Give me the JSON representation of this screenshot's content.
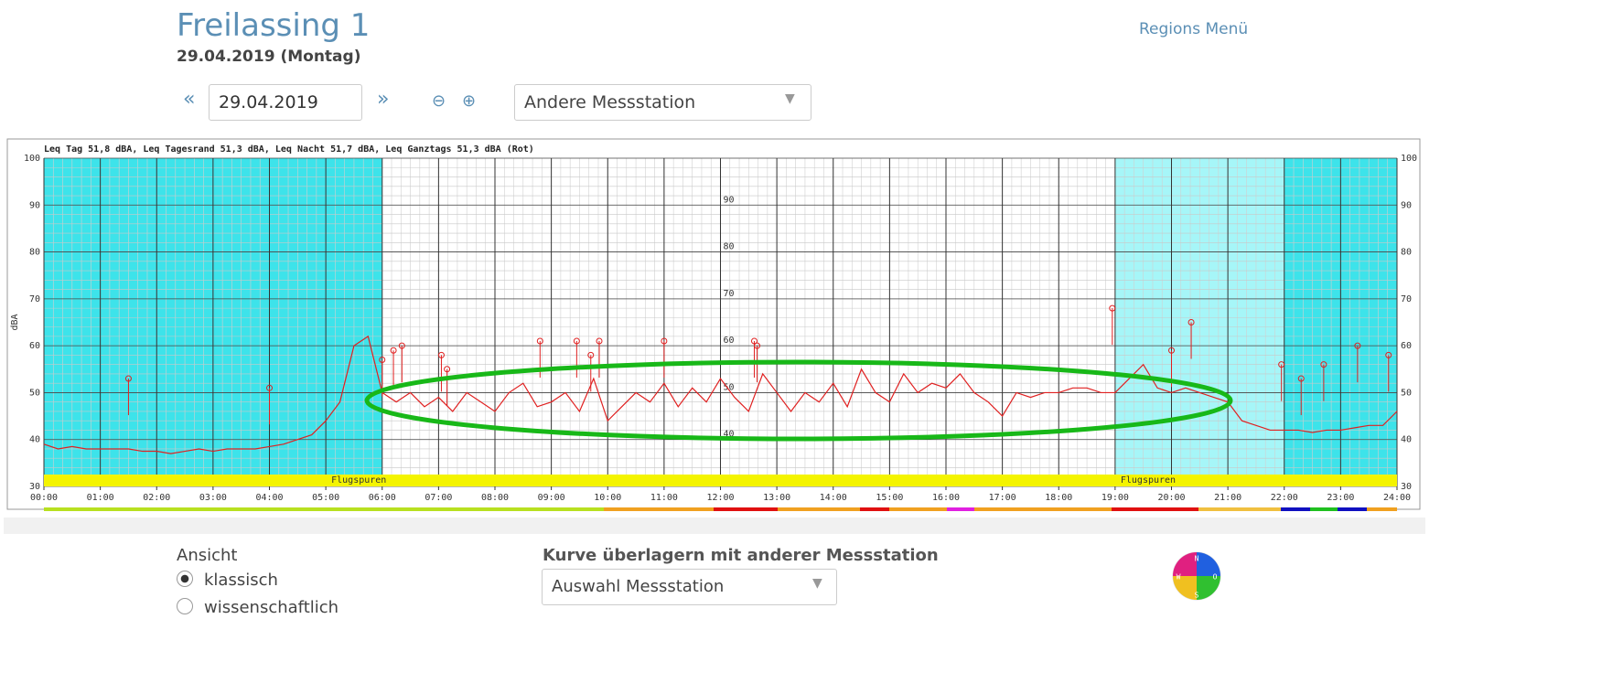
{
  "header": {
    "title": "Freilassing 1",
    "subtitle": "29.04.2019 (Montag)",
    "menu": "Regions Menü"
  },
  "controls": {
    "prev": "«",
    "date": "29.04.2019",
    "next": "»",
    "station_select": "Andere Messstation"
  },
  "chart_data": {
    "type": "line",
    "title": "Leq Tag 51,8 dBA, Leq Tagesrand 51,3 dBA, Leq Nacht 51,7 dBA, Leq Ganztags 51,3 dBA (Rot)",
    "ylabel": "dBA",
    "x": [
      0,
      0.25,
      0.5,
      0.75,
      1,
      1.25,
      1.5,
      1.75,
      2,
      2.25,
      2.5,
      2.75,
      3,
      3.25,
      3.5,
      3.75,
      4,
      4.25,
      4.5,
      4.75,
      5,
      5.25,
      5.5,
      5.75,
      6,
      6.25,
      6.5,
      6.75,
      7,
      7.25,
      7.5,
      7.75,
      8,
      8.25,
      8.5,
      8.75,
      9,
      9.25,
      9.5,
      9.75,
      10,
      10.25,
      10.5,
      10.75,
      11,
      11.25,
      11.5,
      11.75,
      12,
      12.25,
      12.5,
      12.75,
      13,
      13.25,
      13.5,
      13.75,
      14,
      14.25,
      14.5,
      14.75,
      15,
      15.25,
      15.5,
      15.75,
      16,
      16.25,
      16.5,
      16.75,
      17,
      17.25,
      17.5,
      17.75,
      18,
      18.25,
      18.5,
      18.75,
      19,
      19.25,
      19.5,
      19.75,
      20,
      20.25,
      20.5,
      20.75,
      21,
      21.25,
      21.5,
      21.75,
      22,
      22.25,
      22.5,
      22.75,
      23,
      23.25,
      23.5,
      23.75,
      24
    ],
    "series": [
      {
        "color": "#e02020",
        "values": [
          39,
          38,
          38.5,
          38,
          38,
          38,
          38,
          37.5,
          37.5,
          37,
          37.5,
          38,
          37.5,
          38,
          38,
          38,
          38.5,
          39,
          40,
          41,
          44,
          48,
          60,
          62,
          50,
          48,
          50,
          47,
          49,
          46,
          50,
          48,
          46,
          50,
          52,
          47,
          48,
          50,
          46,
          53,
          44,
          47,
          50,
          48,
          52,
          47,
          51,
          48,
          53,
          49,
          46,
          54,
          50,
          46,
          50,
          48,
          52,
          47,
          55,
          50,
          48,
          54,
          50,
          52,
          51,
          54,
          50,
          48,
          45,
          50,
          49,
          50,
          50,
          51,
          51,
          50,
          50,
          53,
          56,
          51,
          50,
          51,
          50,
          49,
          48,
          44,
          43,
          42,
          42,
          42,
          41.5,
          42,
          42,
          42.5,
          43,
          43,
          46
        ]
      }
    ],
    "peaks": {
      "color": "#e02020",
      "x": [
        1.5,
        4.0,
        6.0,
        6.2,
        6.35,
        7.05,
        7.15,
        8.8,
        9.45,
        9.7,
        9.85,
        11.0,
        12.6,
        12.65,
        18.95,
        20.0,
        20.35,
        21.95,
        22.3,
        22.7,
        23.3,
        23.85
      ],
      "values": [
        53,
        51,
        57,
        59,
        60,
        58,
        55,
        61,
        61,
        58,
        61,
        61,
        61,
        60,
        68,
        59,
        65,
        56,
        53,
        56,
        60,
        58
      ]
    },
    "shaded_regions": [
      {
        "from": 0,
        "to": 6,
        "color": "#3de3ea"
      },
      {
        "from": 19,
        "to": 22,
        "color": "#a6f6f8"
      },
      {
        "from": 22,
        "to": 24,
        "color": "#3de3ea"
      }
    ],
    "annotations": [
      {
        "x": 5.0,
        "text": "Flugspuren"
      },
      {
        "x": 19.0,
        "text": "Flugspuren"
      }
    ],
    "xlim": [
      0,
      24
    ],
    "ylim": [
      30,
      100
    ],
    "xticks": [
      {
        "value": 0,
        "label": "00:00"
      },
      {
        "value": 1,
        "label": "01:00"
      },
      {
        "value": 2,
        "label": "02:00"
      },
      {
        "value": 3,
        "label": "03:00"
      },
      {
        "value": 4,
        "label": "04:00"
      },
      {
        "value": 5,
        "label": "05:00"
      },
      {
        "value": 6,
        "label": "06:00"
      },
      {
        "value": 7,
        "label": "07:00"
      },
      {
        "value": 8,
        "label": "08:00"
      },
      {
        "value": 9,
        "label": "09:00"
      },
      {
        "value": 10,
        "label": "10:00"
      },
      {
        "value": 11,
        "label": "11:00"
      },
      {
        "value": 12,
        "label": "12:00"
      },
      {
        "value": 13,
        "label": "13:00"
      },
      {
        "value": 14,
        "label": "14:00"
      },
      {
        "value": 15,
        "label": "15:00"
      },
      {
        "value": 16,
        "label": "16:00"
      },
      {
        "value": 17,
        "label": "17:00"
      },
      {
        "value": 18,
        "label": "18:00"
      },
      {
        "value": 19,
        "label": "19:00"
      },
      {
        "value": 20,
        "label": "20:00"
      },
      {
        "value": 21,
        "label": "21:00"
      },
      {
        "value": 22,
        "label": "22:00"
      },
      {
        "value": 23,
        "label": "23:00"
      },
      {
        "value": 24,
        "label": "24:00"
      }
    ],
    "yticks": [
      30,
      40,
      50,
      60,
      70,
      80,
      90,
      100
    ],
    "grid": true
  },
  "options": {
    "view_label": "Ansicht",
    "view_options": [
      "klassisch",
      "wissenschaftlich"
    ],
    "overlay_label": "Kurve überlagern mit anderer Messstation",
    "overlay_select": "Auswahl Messstation"
  },
  "compass": [
    "N",
    "O",
    "S",
    "W"
  ]
}
